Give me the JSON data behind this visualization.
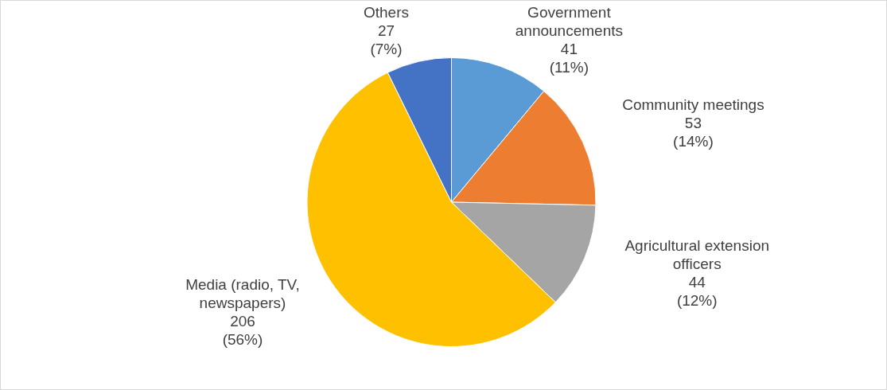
{
  "chart_data": {
    "type": "pie",
    "categories": [
      "Government announcements",
      "Community meetings",
      "Agricultural extension officers",
      "Media (radio, TV, newspapers)",
      "Others"
    ],
    "values": [
      41,
      53,
      44,
      206,
      27
    ],
    "colors": [
      "#5b9bd5",
      "#ed7d31",
      "#a5a5a5",
      "#ffc000",
      "#4472c4"
    ],
    "value_labels": [
      "41\n(11%)",
      "53\n(14%)",
      "44\n(12%)",
      "206\n(56%)",
      "27\n(7%)"
    ],
    "legend": false
  }
}
